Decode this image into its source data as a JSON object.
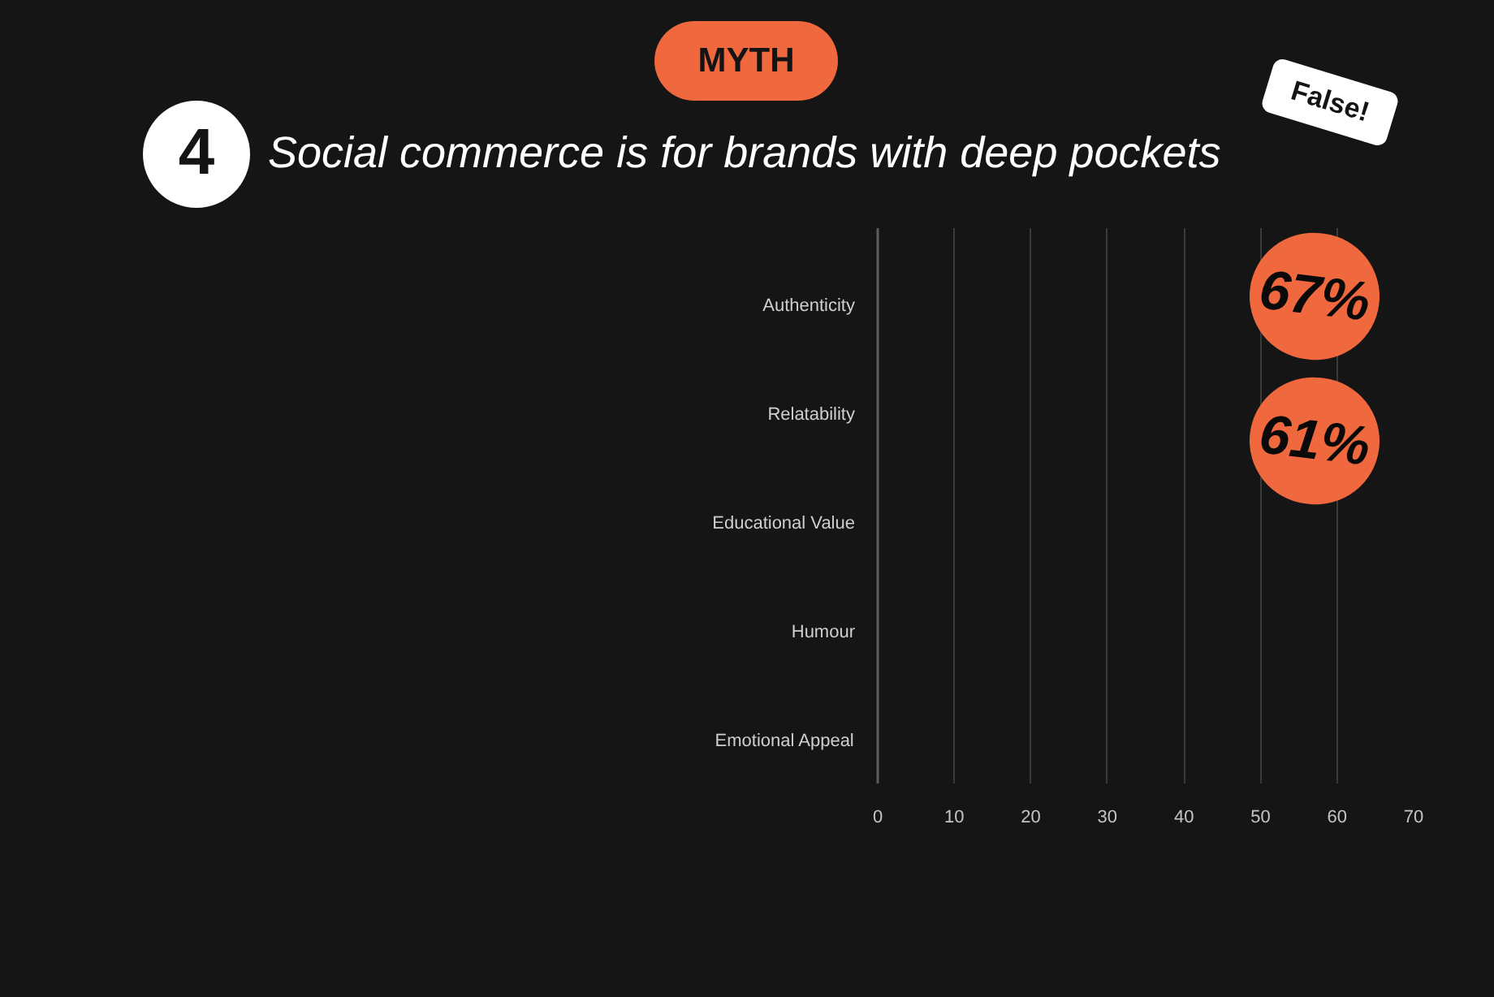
{
  "chart_data": {
    "type": "bar",
    "orientation": "horizontal",
    "title": "Social commerce is for brands with deep pockets",
    "categories": [
      "Authenticity",
      "Relatability",
      "Educational Value",
      "Humour",
      "Emotional Appeal"
    ],
    "values": [
      null,
      null,
      null,
      null,
      null
    ],
    "xlim": [
      0,
      70
    ],
    "xticks": [
      0,
      10,
      20,
      30,
      40,
      50,
      60,
      70
    ],
    "grid": "x",
    "annotations": [
      "MYTH",
      "4",
      "False!",
      "67%",
      "61%"
    ]
  }
}
